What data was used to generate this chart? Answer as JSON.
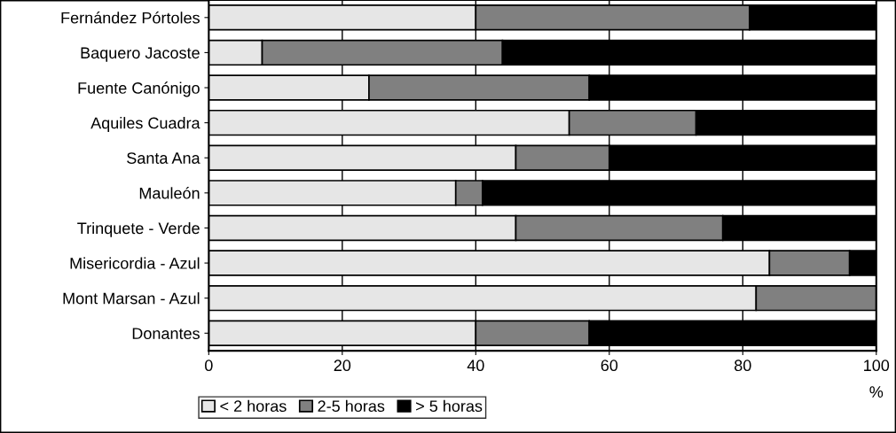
{
  "chart_data": {
    "type": "bar",
    "orientation": "horizontal",
    "stacked": true,
    "categories": [
      "Fernández Pórtoles",
      "Baquero Jacoste",
      "Fuente Canónigo",
      "Aquiles Cuadra",
      "Santa Ana",
      "Mauleón",
      "Trinquete - Verde",
      "Misericordia - Azul",
      "Mont Marsan - Azul",
      "Donantes"
    ],
    "series": [
      {
        "name": "< 2 horas",
        "color": "#e6e6e6",
        "values": [
          40,
          8,
          24,
          54,
          46,
          37,
          46,
          84,
          82,
          40
        ]
      },
      {
        "name": "2-5 horas",
        "color": "#808080",
        "values": [
          41,
          36,
          33,
          19,
          14,
          4,
          31,
          12,
          18,
          17
        ]
      },
      {
        "name": "> 5 horas",
        "color": "#000000",
        "values": [
          19,
          56,
          43,
          27,
          40,
          59,
          23,
          4,
          0,
          43
        ]
      }
    ],
    "xlim": [
      0,
      100
    ],
    "xticks": [
      0,
      20,
      40,
      60,
      80,
      100
    ],
    "xlabel": "%",
    "grid": "x",
    "legend": "bottom"
  }
}
